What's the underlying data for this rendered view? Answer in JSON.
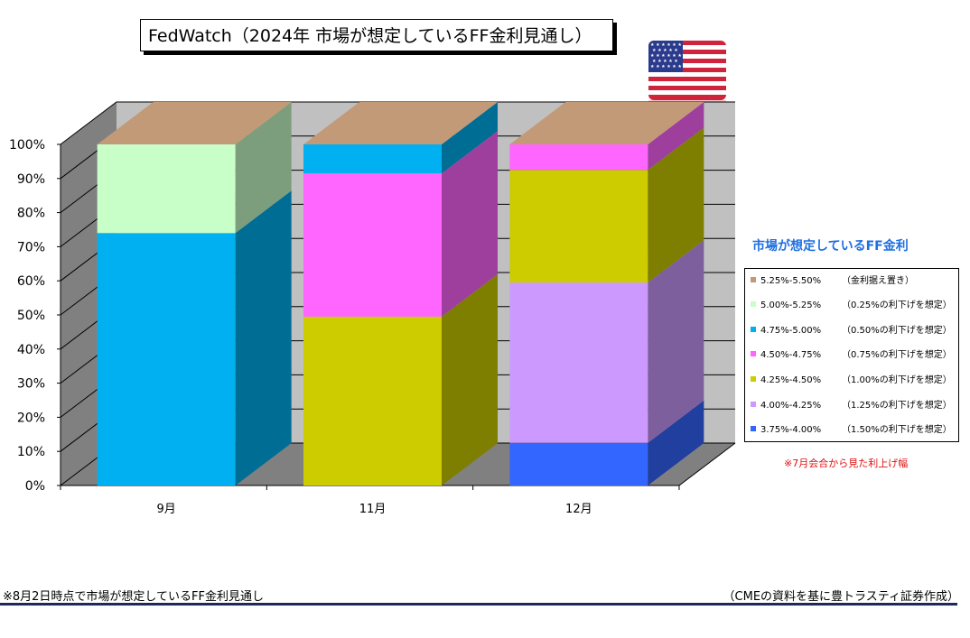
{
  "title": "FedWatch（2024年  市場が想定しているFF金利見通し）",
  "legend_title": "市場が想定しているFF金利",
  "legend": [
    {
      "range": "5.25%-5.50%",
      "note": "（金利据え置き）",
      "color": "#c39a78"
    },
    {
      "range": "5.00%-5.25%",
      "note": "（0.25%の利下げを想定）",
      "color": "#c8ffc8"
    },
    {
      "range": "4.75%-5.00%",
      "note": "（0.50%の利下げを想定）",
      "color": "#00b0f0"
    },
    {
      "range": "4.50%-4.75%",
      "note": "（0.75%の利下げを想定）",
      "color": "#ff66ff"
    },
    {
      "range": "4.25%-4.50%",
      "note": "（1.00%の利下げを想定）",
      "color": "#cccc00"
    },
    {
      "range": "4.00%-4.25%",
      "note": "（1.25%の利下げを想定）",
      "color": "#cc99ff"
    },
    {
      "range": "3.75%-4.00%",
      "note": "（1.50%の利下げを想定）",
      "color": "#3366ff"
    }
  ],
  "red_note": "※7月会合から見た利上げ幅",
  "footer_left": "※8月2日時点で市場が想定しているFF金利見通し",
  "footer_right": "（CMEの資料を基に豊トラスティ証券作成）",
  "chart_data": {
    "type": "bar",
    "stacked": true,
    "three_d": true,
    "categories": [
      "9月",
      "11月",
      "12月"
    ],
    "ylim": [
      0,
      100
    ],
    "yticks": [
      "0%",
      "10%",
      "20%",
      "30%",
      "40%",
      "50%",
      "60%",
      "70%",
      "80%",
      "90%",
      "100%"
    ],
    "series": [
      {
        "name": "3.75%-4.00%",
        "color": "#3366ff",
        "values": [
          0,
          0,
          12.5
        ]
      },
      {
        "name": "4.00%-4.25%",
        "color": "#cc99ff",
        "values": [
          0,
          0,
          47
        ]
      },
      {
        "name": "4.25%-4.50%",
        "color": "#cccc00",
        "values": [
          0,
          49.5,
          33
        ]
      },
      {
        "name": "4.50%-4.75%",
        "color": "#ff66ff",
        "values": [
          0,
          42,
          7.5
        ]
      },
      {
        "name": "4.75%-5.00%",
        "color": "#00b0f0",
        "values": [
          74,
          8.5,
          0
        ]
      },
      {
        "name": "5.00%-5.25%",
        "color": "#c8ffc8",
        "values": [
          26,
          0,
          0
        ]
      },
      {
        "name": "5.25%-5.50%",
        "color": "#c39a78",
        "values": [
          0,
          0,
          0
        ]
      }
    ],
    "wall_color": "#c0c0c0",
    "side_wall_color": "#808080",
    "top_color": "#c39a78"
  }
}
